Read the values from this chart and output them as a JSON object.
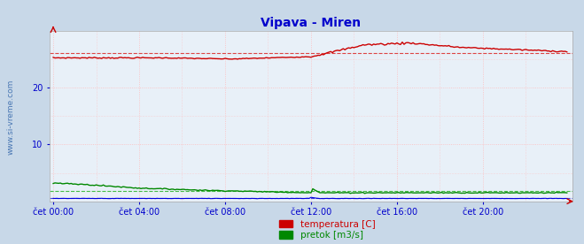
{
  "title": "Vipava - Miren",
  "title_color": "#0000cc",
  "title_fontsize": 10,
  "fig_bg_color": "#c8d8e8",
  "plot_bg_color": "#e8f0f8",
  "grid_color": "#ffbbbb",
  "ylim": [
    0,
    30
  ],
  "yticks": [
    10,
    20
  ],
  "xtick_labels": [
    "čet 00:00",
    "čet 04:00",
    "čet 08:00",
    "čet 12:00",
    "čet 16:00",
    "čet 20:00"
  ],
  "xtick_positions": [
    0,
    48,
    96,
    144,
    192,
    240
  ],
  "n_points": 288,
  "watermark": "www.si-vreme.com",
  "watermark_color": "#3366aa",
  "legend_labels": [
    "temperatura [C]",
    "pretok [m3/s]"
  ],
  "legend_colors": [
    "#cc0000",
    "#008800"
  ],
  "temp_color": "#cc0000",
  "pretok_color": "#008800",
  "visina_color": "#0000dd",
  "avg_temp_color": "#dd4444",
  "avg_pretok_color": "#44bb44",
  "avg_visina_color": "#4444dd",
  "tick_color": "#0000cc",
  "tick_fontsize": 7,
  "spine_color": "#aaaaaa"
}
